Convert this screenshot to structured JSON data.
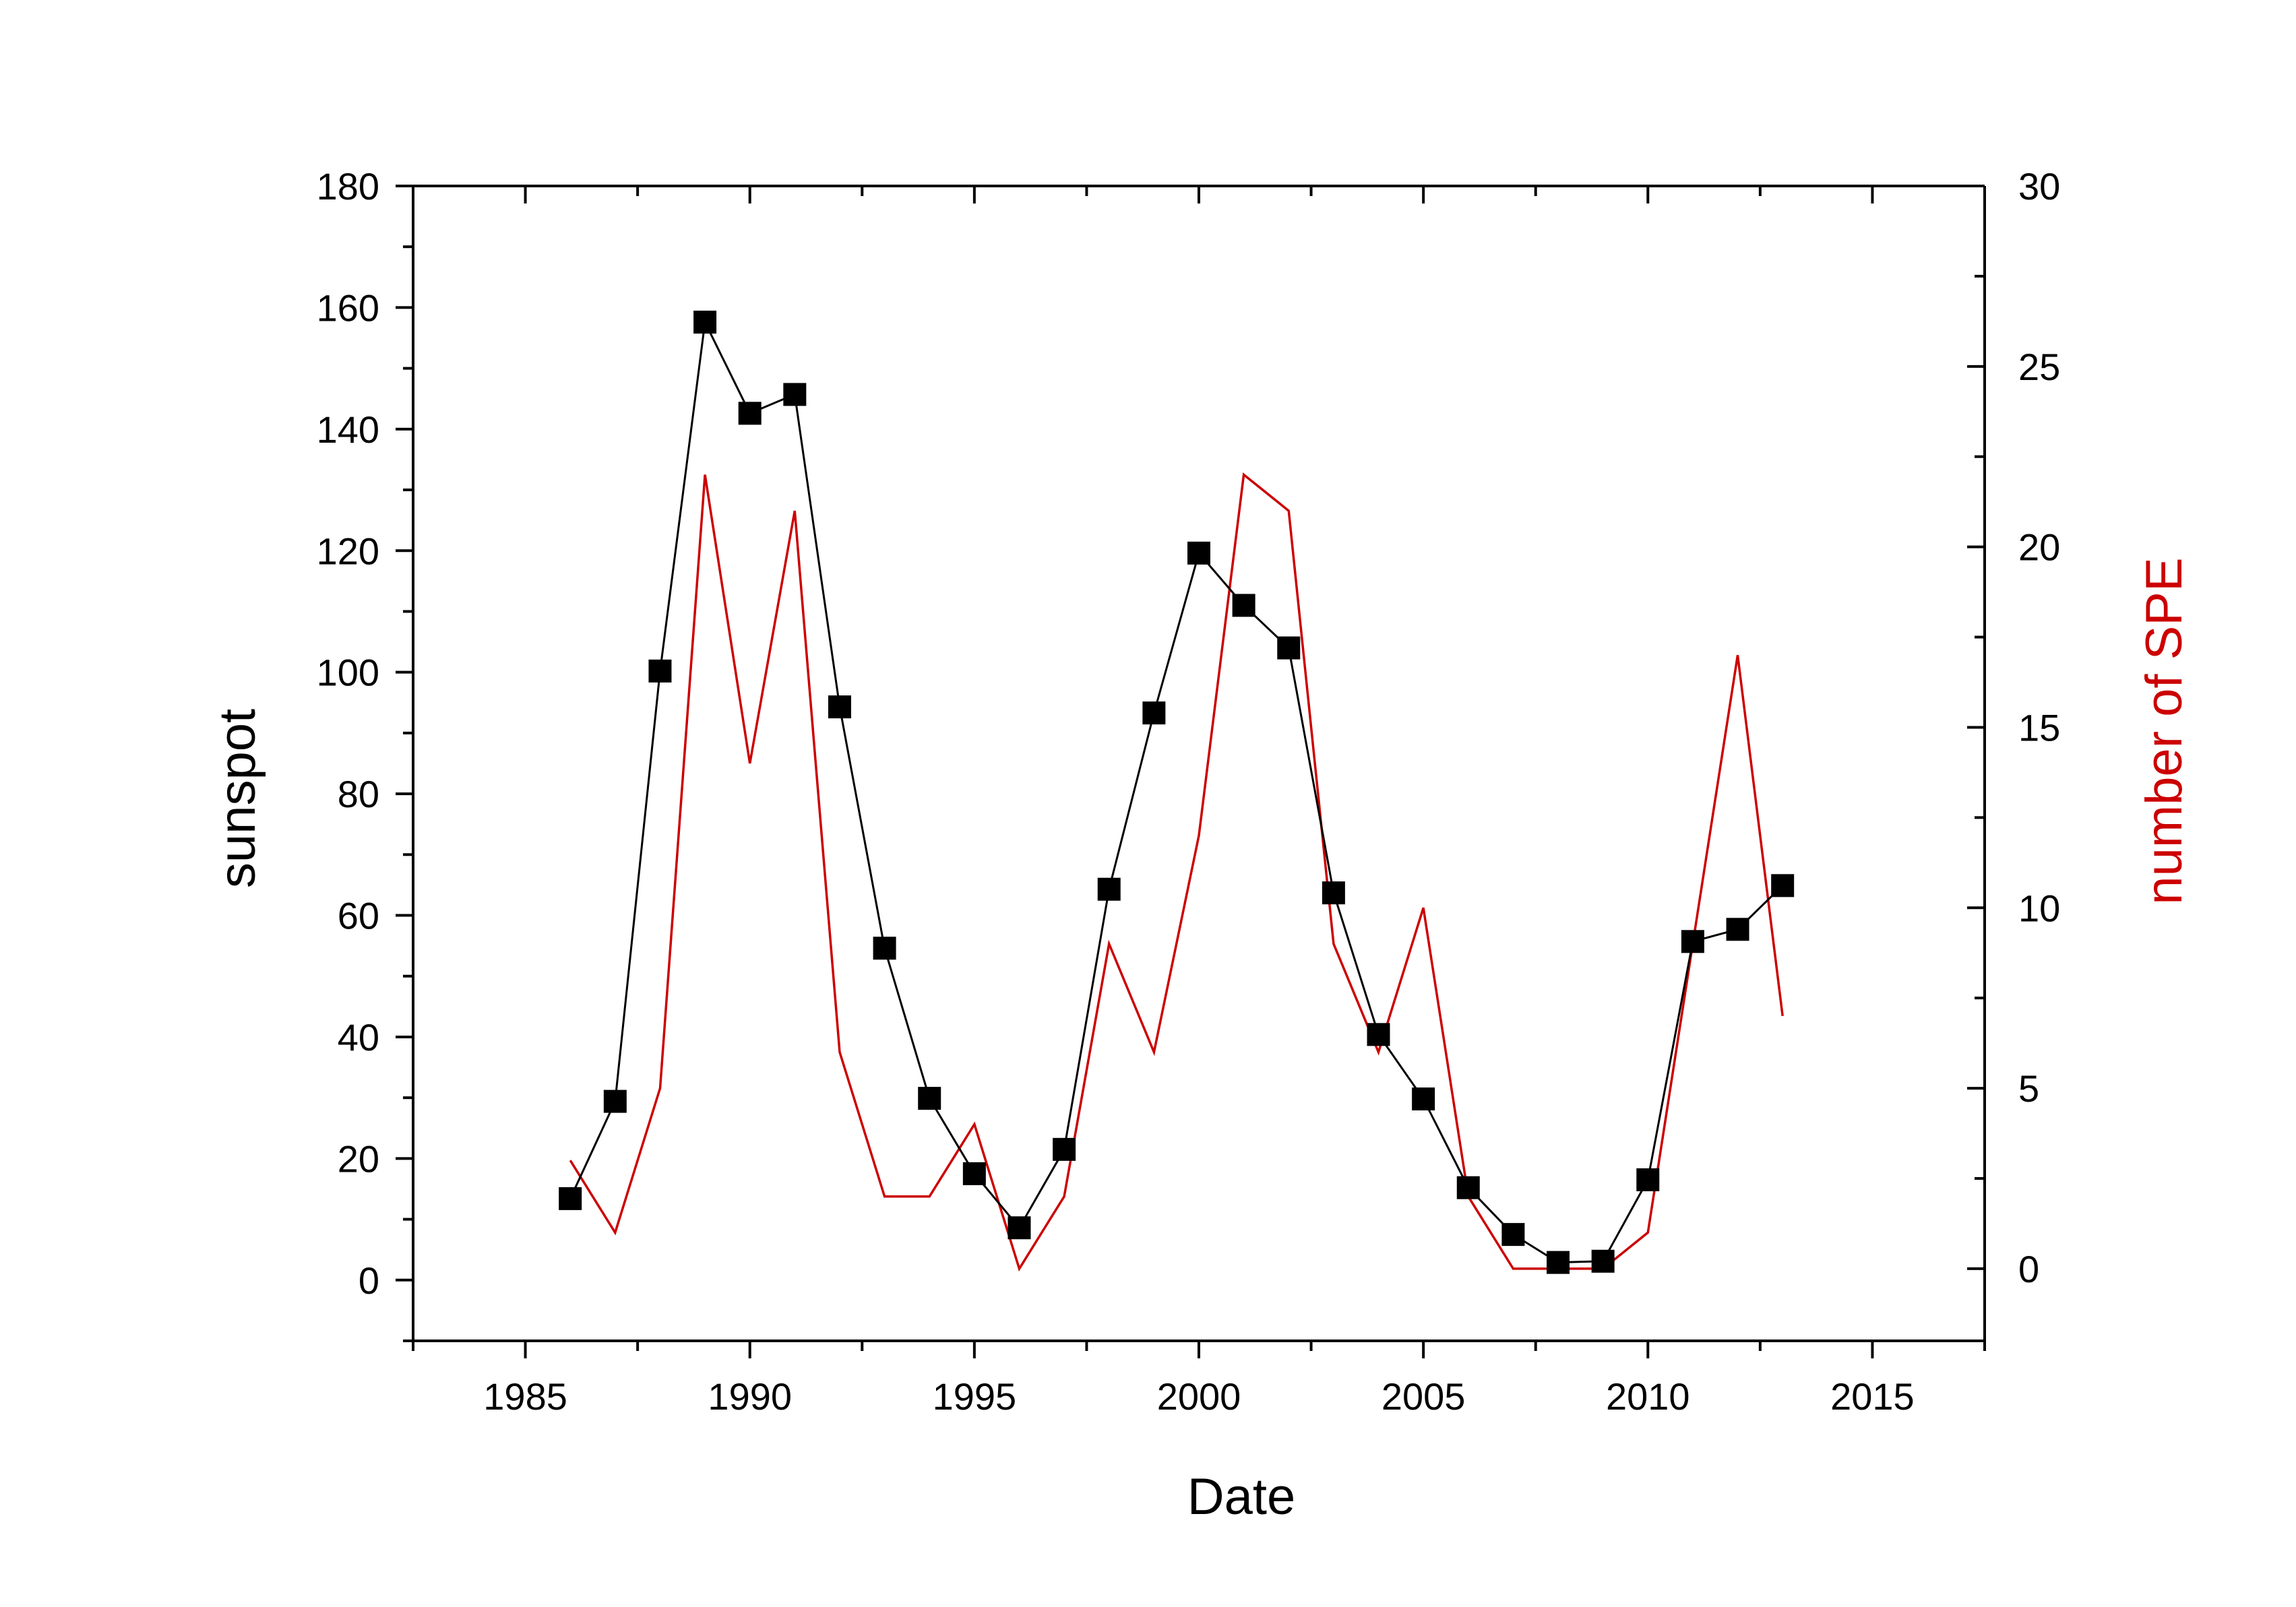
{
  "chart_data": {
    "type": "line",
    "title": "",
    "xlabel": "Date",
    "ylabel": "sunspot",
    "y2label": "number of SPE",
    "xlim": [
      1982.5,
      2017.5
    ],
    "ylim": [
      -10,
      180
    ],
    "y2lim": [
      -2,
      30
    ],
    "x_ticks": [
      1985,
      1990,
      1995,
      2000,
      2005,
      2010,
      2015
    ],
    "y_ticks": [
      0,
      20,
      40,
      60,
      80,
      100,
      120,
      140,
      160,
      180
    ],
    "y2_ticks": [
      0,
      5,
      10,
      15,
      20,
      25,
      30
    ],
    "grid": false,
    "legend": "none",
    "series": [
      {
        "axis": "left",
        "style": "line-with-square-markers",
        "color": "#000000",
        "x": [
          1986,
          1987,
          1988,
          1989,
          1990,
          1991,
          1992,
          1993,
          1994,
          1995,
          1996,
          1997,
          1998,
          1999,
          2000,
          2001,
          2002,
          2003,
          2004,
          2005,
          2006,
          2007,
          2008,
          2009,
          2010,
          2011,
          2012,
          2013
        ],
        "values": [
          13.4,
          29.4,
          100.2,
          157.6,
          142.6,
          145.7,
          94.3,
          54.6,
          29.9,
          17.5,
          8.6,
          21.5,
          64.3,
          93.3,
          119.6,
          111.0,
          104.0,
          63.7,
          40.4,
          29.8,
          15.2,
          7.5,
          2.9,
          3.1,
          16.5,
          55.7,
          57.7,
          64.9
        ]
      },
      {
        "axis": "right",
        "style": "line",
        "color": "#cc0000",
        "x": [
          1986,
          1987,
          1988,
          1989,
          1990,
          1991,
          1992,
          1993,
          1994,
          1995,
          1996,
          1997,
          1998,
          1999,
          2000,
          2001,
          2002,
          2003,
          2004,
          2005,
          2006,
          2007,
          2008,
          2009,
          2010,
          2011,
          2012,
          2013
        ],
        "values": [
          3,
          1,
          5,
          22,
          14,
          21,
          6,
          2,
          2,
          4,
          0,
          2,
          9,
          6,
          12,
          22,
          21,
          9,
          6,
          10,
          2,
          0,
          0,
          0,
          1,
          9,
          17,
          7
        ]
      }
    ],
    "colors": {
      "axes": "#000000",
      "left_axis_title": "#000000",
      "right_axis_title": "#cc0000"
    }
  }
}
